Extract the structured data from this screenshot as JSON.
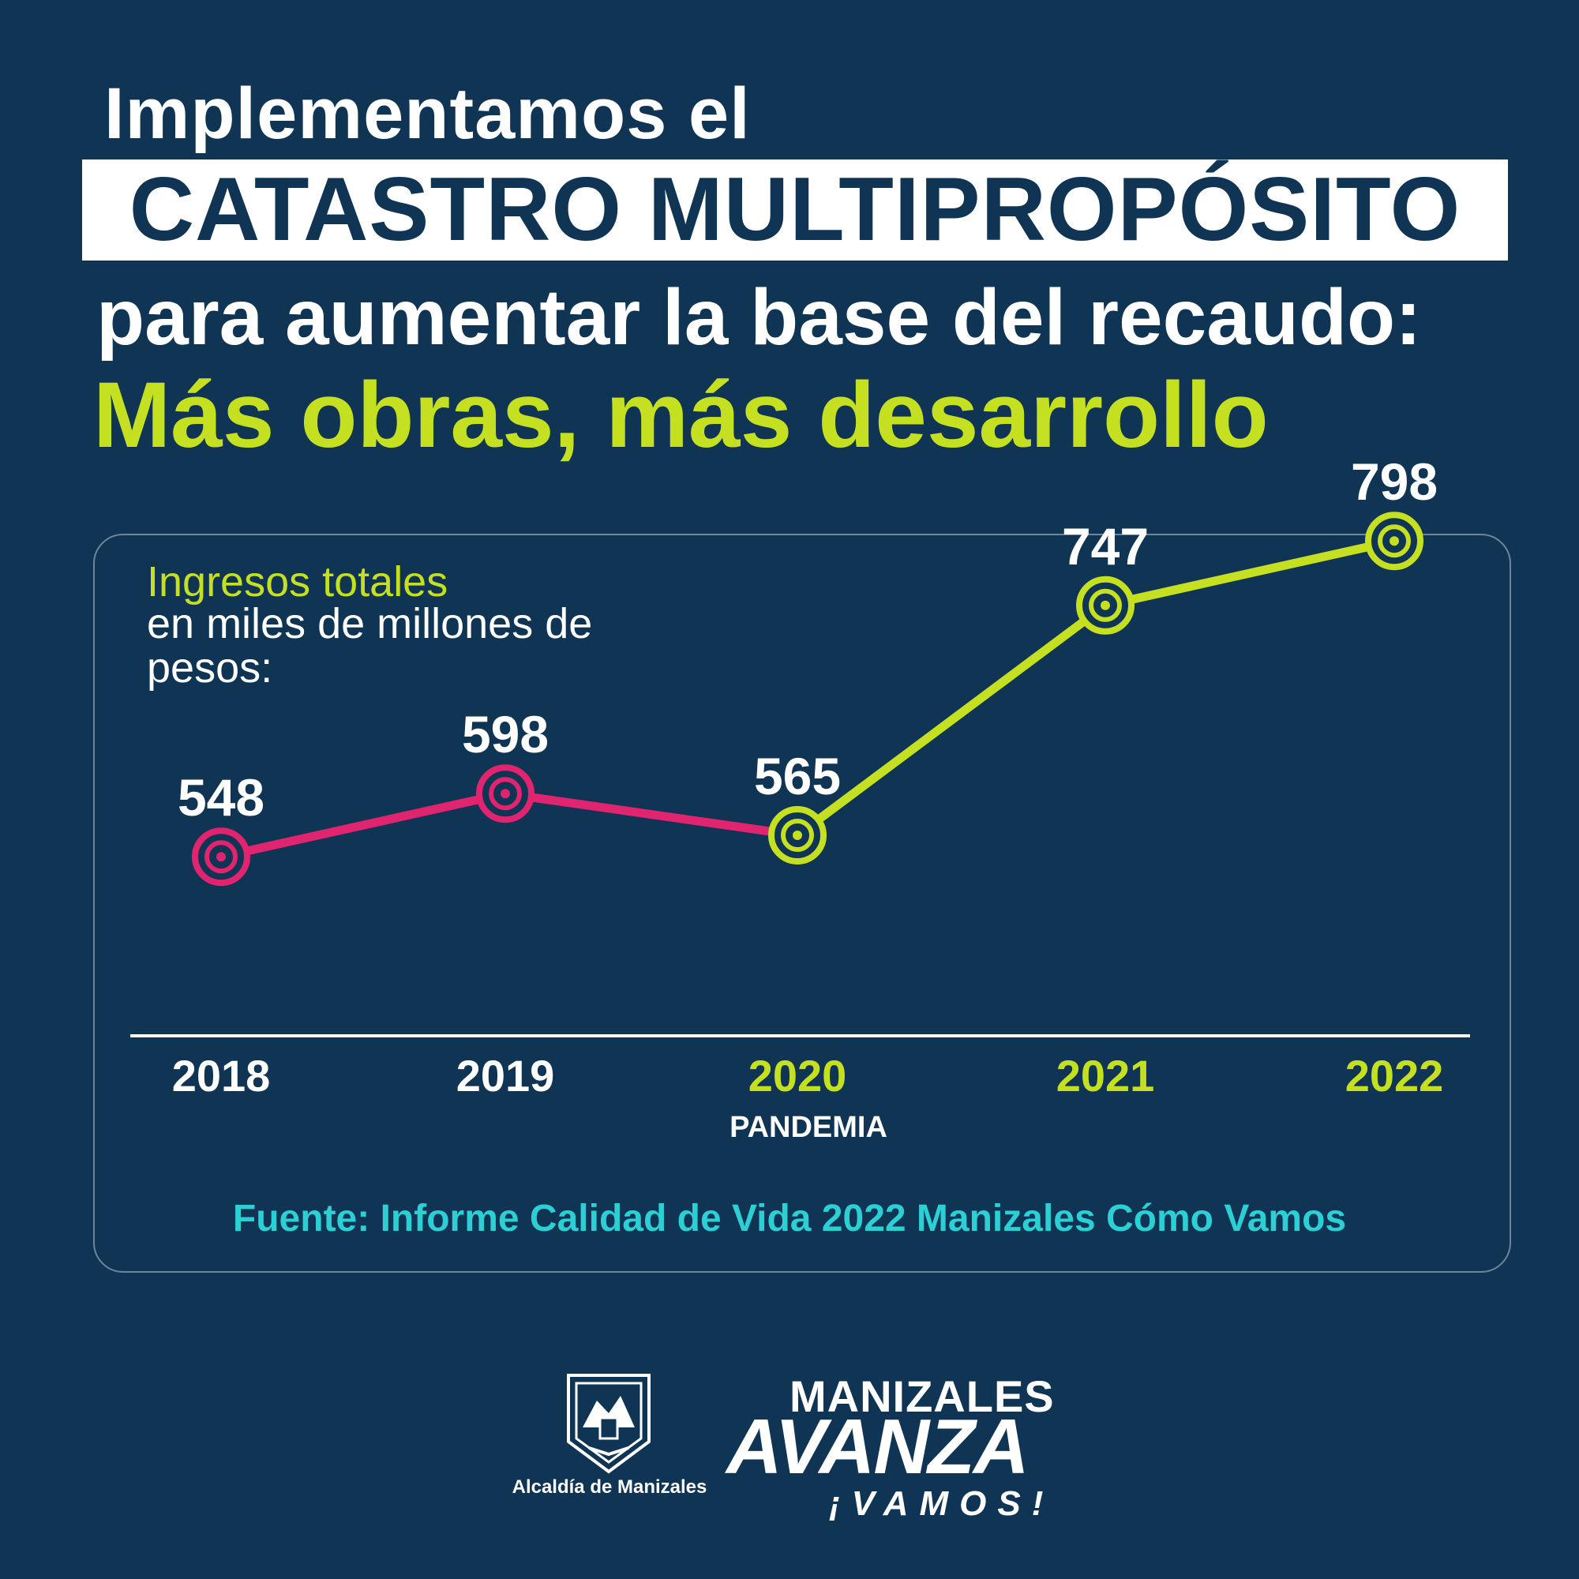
{
  "headline": {
    "line1": "Implementamos el",
    "line2": "CATASTRO MULTIPROPÓSITO",
    "line3": "para aumentar la base del recaudo:",
    "line4": "Más obras, más desarrollo"
  },
  "chart_data": {
    "type": "line",
    "ylabel_highlight": "Ingresos totales",
    "ylabel_rest": "en miles de millones de pesos:",
    "categories": [
      "2018",
      "2019",
      "2020",
      "2021",
      "2022"
    ],
    "values": [
      548,
      598,
      565,
      747,
      798
    ],
    "annotation": "PANDEMIA",
    "ylim": [
      500,
      800
    ],
    "grid": false,
    "colors": {
      "before_2020": "#e0246f",
      "from_2020": "#c4e021",
      "year_white": "#ffffff",
      "year_green": "#c4e021"
    },
    "segment_colors": [
      "#e0246f",
      "#e0246f",
      "#c4e021",
      "#c4e021"
    ],
    "marker_colors": [
      "#e0246f",
      "#e0246f",
      "#c4e021",
      "#c4e021",
      "#c4e021"
    ],
    "tick_colors": [
      "#ffffff",
      "#ffffff",
      "#c4e021",
      "#c4e021",
      "#c4e021"
    ]
  },
  "source": "Fuente: Informe Calidad de Vida 2022 Manizales Cómo Vamos",
  "footer": {
    "alcaldia_label": "Alcaldía de Manizales",
    "brand_top": "MANIZALES",
    "brand_main": "AVANZA",
    "brand_sub": "¡VAMOS!"
  }
}
